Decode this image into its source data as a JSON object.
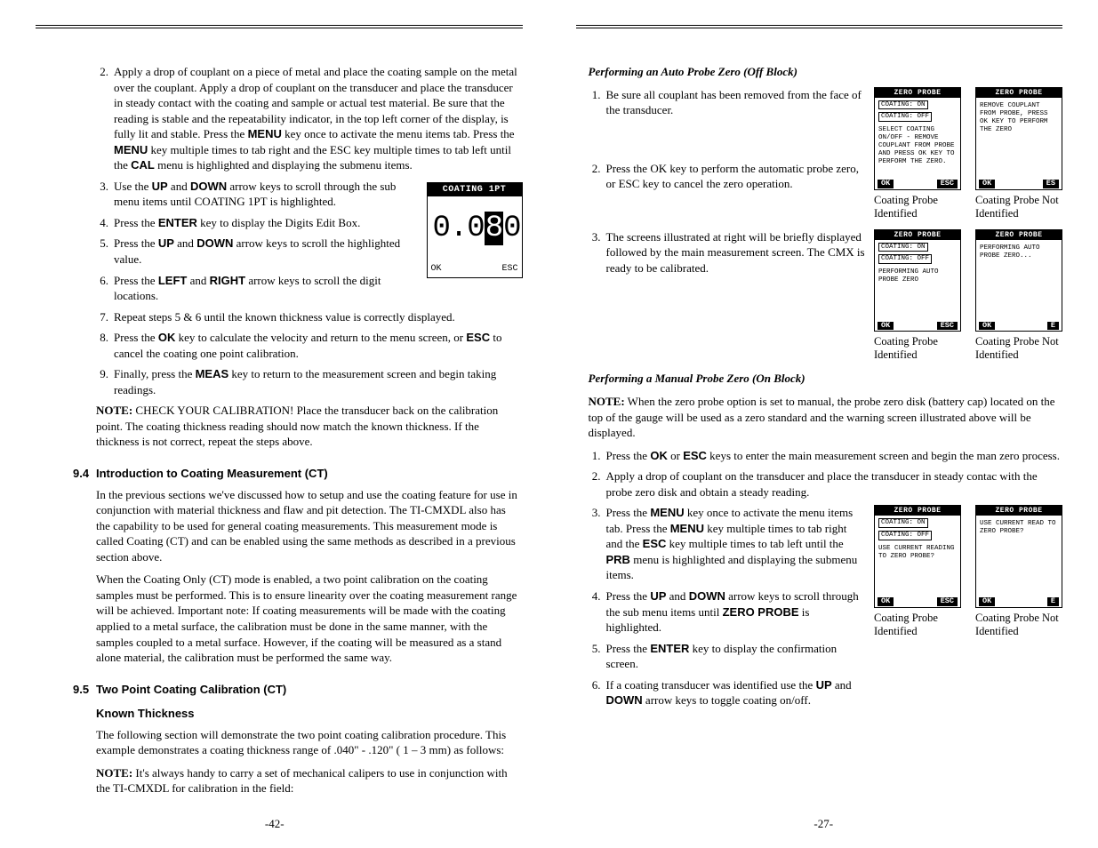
{
  "left": {
    "steps_a": [
      {
        "n": "2.",
        "t": "Apply a drop of couplant on a piece of metal and place the coating sample on the metal over the couplant. Apply a drop of couplant on the transducer and place the transducer in steady contact with the coating and sample or actual test material. Be sure that the reading is stable and the repeatability indicator, in the top left corner of the display, is fully lit and stable. Press the <b class=\"key\">MENU</b> key once to activate the menu items tab. Press the <b class=\"key\">MENU</b> key multiple times to tab right and the ESC key multiple times to tab left until the <b class=\"key\">CAL</b> menu is highlighted and displaying the submenu items."
      }
    ],
    "steps_b": [
      {
        "n": "3.",
        "t": "Use the <b class=\"key\">UP</b> and <b class=\"key\">DOWN</b> arrow keys to scroll through the sub menu items until COATING 1PT is highlighted."
      },
      {
        "n": "4.",
        "t": "Press the <b class=\"key\">ENTER</b> key to display the Digits Edit Box."
      },
      {
        "n": "5.",
        "t": "Press the <b class=\"key\">UP</b> and <b class=\"key\">DOWN</b> arrow keys to scroll the highlighted value."
      },
      {
        "n": "6.",
        "t": "Press the <b class=\"key\">LEFT</b> and <b class=\"key\">RIGHT</b> arrow keys to scroll the digit locations."
      },
      {
        "n": "7.",
        "t": "Repeat steps 5 & 6 until the known thickness value is correctly displayed."
      }
    ],
    "steps_c": [
      {
        "n": "8.",
        "t": "Press the <b class=\"key\">OK</b> key to calculate the velocity and return to the menu screen, or <b class=\"key\">ESC</b> to cancel the coating one point calibration."
      },
      {
        "n": "9.",
        "t": "Finally, press the <b class=\"key\">MEAS</b> key to return to the measurement screen and begin taking readings."
      }
    ],
    "note": "<span class=\"note-bold\">NOTE:</span> CHECK YOUR CALIBRATION! Place the transducer back on the calibration point. The coating thickness reading should now match the known thickness. If the thickness is not correct, repeat the steps above.",
    "sec94_num": "9.4",
    "sec94_title": "Introduction to Coating Measurement (CT)",
    "sec94_p1": "In the previous sections we've discussed how to setup and use the coating feature for use in conjunction with material thickness and flaw and pit detection. The TI-CMXDL also has the capability to be used for general coating measurements. This measurement mode is called Coating (CT) and can be enabled using the same methods as described in a previous section above.",
    "sec94_p2": "When the Coating Only (CT) mode is enabled, a two point calibration on the coating samples must be performed. This is to ensure linearity over the coating measurement range will be achieved. Important note: If coating measurements will be made with the coating applied to a metal surface, the calibration must be done in the same manner, with the samples coupled to a metal surface. However, if the coating will be measured as a stand alone material, the calibration must be performed the same way.",
    "sec95_num": "9.5",
    "sec95_title": "Two Point Coating Calibration (CT)",
    "known": "Known Thickness",
    "sec95_p1": "The following section will demonstrate the two point coating calibration procedure. This example demonstrates a coating thickness range of .040\" - .120\" ( 1 – 3 mm) as follows:",
    "sec95_p2": "<span class=\"note-bold\">NOTE:</span> It's always handy to carry a set of mechanical calipers to use in conjunction with the TI-CMXDL for calibration in the field:",
    "device_big": {
      "title": "COATING 1PT",
      "val_pre": "0.0",
      "val_hl": "8",
      "val_post": "0",
      "ok": "OK",
      "esc": "ESC"
    },
    "pagenum": "-42-"
  },
  "right": {
    "head1": "Performing an Auto Probe Zero (Off Block)",
    "r1_steps": [
      {
        "n": "1.",
        "t": "Be sure all couplant has been removed from the face of the transducer."
      },
      {
        "n": "2.",
        "t": "Press the OK key to perform the automatic probe zero, or ESC key to cancel the zero operation."
      }
    ],
    "r1_devA": {
      "title": "ZERO PROBE",
      "on": "COATING:  ON",
      "off": "COATING:  OFF",
      "body": "SELECT COATING ON/OFF - REMOVE COUPLANT FROM PROBE AND PRESS OK KEY TO PERFORM THE ZERO.",
      "ok": "OK",
      "esc": "ESC",
      "cap": "Coating Probe Identified"
    },
    "r1_devB": {
      "title": "ZERO PROBE",
      "body": "REMOVE COUPLANT FROM PROBE, PRESS OK KEY TO PERFORM THE ZERO",
      "ok": "OK",
      "esc": "ES",
      "cap": "Coating Probe Not Identified"
    },
    "r2_step": {
      "n": "3.",
      "t": "The screens illustrated at right will be briefly displayed followed by the main measurement screen. The CMX is ready to be calibrated."
    },
    "r2_devA": {
      "title": "ZERO PROBE",
      "on": "COATING:  ON",
      "off": "COATING:  OFF",
      "body": "PERFORMING AUTO PROBE ZERO",
      "ok": "OK",
      "esc": "ESC",
      "cap": "Coating Probe Identified"
    },
    "r2_devB": {
      "title": "ZERO PROBE",
      "body": "PERFORMING AUTO PROBE ZERO...",
      "ok": "OK",
      "esc": "E",
      "cap": "Coating Probe Not Identified"
    },
    "head2": "Performing a Manual Probe Zero (On Block)",
    "note2": "<span class=\"note-bold\">NOTE:</span> When the zero probe option is set to manual, the probe zero disk (battery cap) located on the top of the gauge will be used as a zero standard and the warning screen illustrated above will be displayed.",
    "full_steps": [
      {
        "n": "1.",
        "t": "Press the <b class=\"key\">OK</b> or <b class=\"key\">ESC</b> keys to enter the main measurement screen and begin the man zero process."
      },
      {
        "n": "2.",
        "t": "Apply a drop of couplant on the transducer and place the transducer in steady contac with the probe zero disk and obtain a steady reading."
      }
    ],
    "r3_steps": [
      {
        "n": "3.",
        "t": "Press the <b class=\"key\">MENU</b> key once to activate the menu items tab. Press the <b class=\"key\">MENU</b> key multiple times to tab right and the <b class=\"key\">ESC</b> key multiple times to tab left until the <b class=\"key\">PRB</b> menu is highlighted and displaying the submenu items."
      },
      {
        "n": "4.",
        "t": "Press the <b class=\"key\">UP</b> and <b class=\"key\">DOWN</b> arrow keys to scroll through the sub menu items until <b class=\"key\">ZERO PROBE</b> is highlighted."
      },
      {
        "n": "5.",
        "t": "Press the <b class=\"key\">ENTER</b> key to display the confirmation screen."
      },
      {
        "n": "6.",
        "t": "If a coating transducer was identified use the <b class=\"key\">UP</b> and <b class=\"key\">DOWN</b> arrow keys to toggle coating on/off."
      }
    ],
    "r3_devA": {
      "title": "ZERO PROBE",
      "on": "COATING:  ON",
      "off": "COATING:  OFF",
      "body": "USE CURRENT READING TO ZERO PROBE?",
      "ok": "OK",
      "esc": "ESC",
      "cap": "Coating Probe Identified"
    },
    "r3_devB": {
      "title": "ZERO PROBE",
      "body": "USE CURRENT READ TO ZERO PROBE?",
      "ok": "OK",
      "esc": "E",
      "cap": "Coating Probe Not Identified"
    },
    "pagenum": "-27-"
  }
}
